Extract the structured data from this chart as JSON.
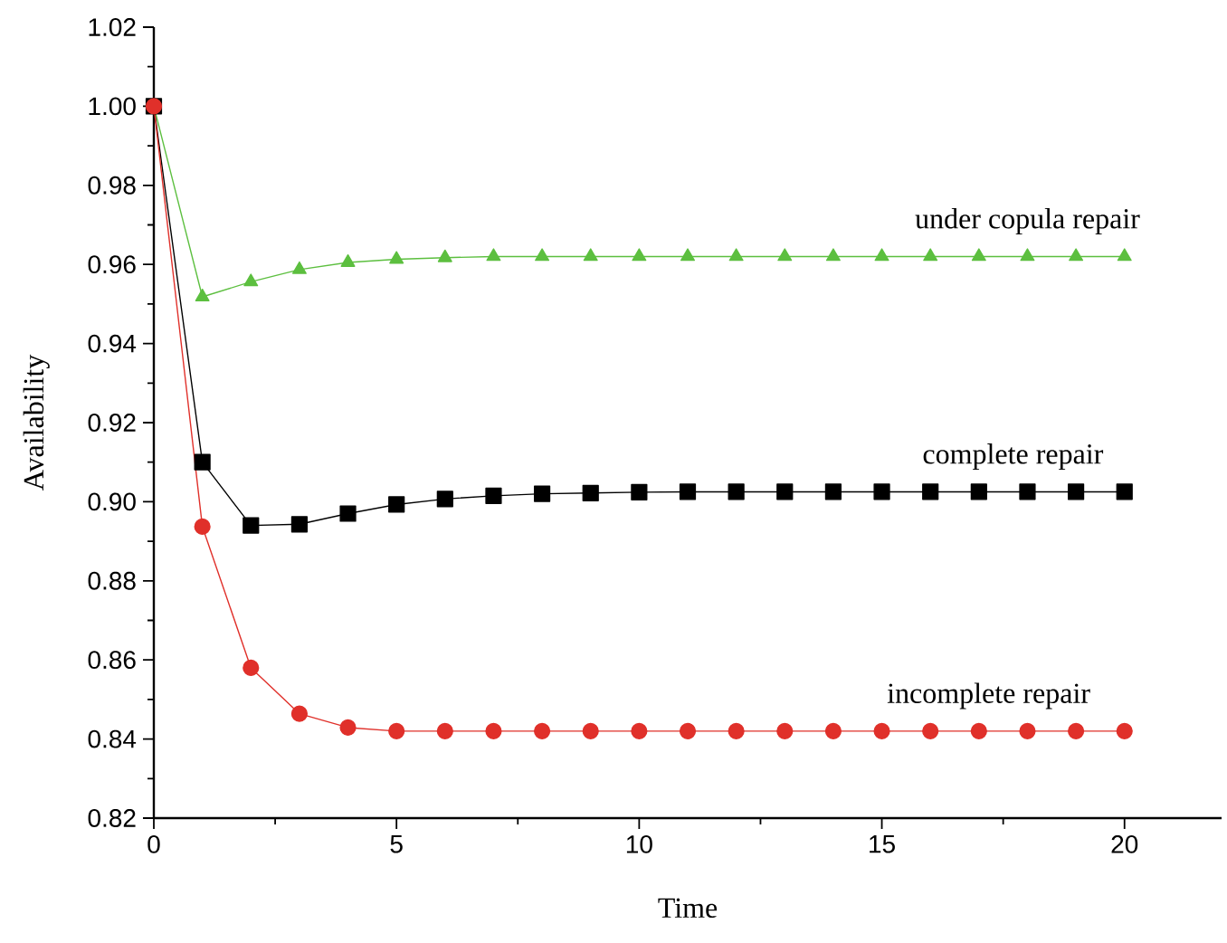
{
  "chart_data": {
    "type": "line",
    "xlabel": "Time",
    "ylabel": "Availability",
    "x": [
      0,
      1,
      2,
      3,
      4,
      5,
      6,
      7,
      8,
      9,
      10,
      11,
      12,
      13,
      14,
      15,
      16,
      17,
      18,
      19,
      20
    ],
    "series": [
      {
        "color": "#5cbf3f",
        "marker": "triangle",
        "values": [
          1.0,
          0.9518,
          0.9556,
          0.9587,
          0.9605,
          0.9613,
          0.9617,
          0.962,
          0.962,
          0.962,
          0.962,
          0.962,
          0.962,
          0.962,
          0.962,
          0.962,
          0.962,
          0.962,
          0.962,
          0.962,
          0.962
        ]
      },
      {
        "color": "#000000",
        "marker": "square",
        "values": [
          1.0,
          0.91,
          0.894,
          0.8943,
          0.897,
          0.8993,
          0.9007,
          0.9015,
          0.902,
          0.9022,
          0.9024,
          0.9025,
          0.9025,
          0.9025,
          0.9025,
          0.9025,
          0.9025,
          0.9025,
          0.9025,
          0.9025,
          0.9025
        ]
      },
      {
        "color": "#e0302a",
        "marker": "circle",
        "values": [
          1.0,
          0.8937,
          0.858,
          0.8464,
          0.8429,
          0.842,
          0.842,
          0.842,
          0.842,
          0.842,
          0.842,
          0.842,
          0.842,
          0.842,
          0.842,
          0.842,
          0.842,
          0.842,
          0.842,
          0.842,
          0.842
        ]
      }
    ],
    "annotations": [
      {
        "text": "under copula repair",
        "x": 18.0,
        "y": 0.962
      },
      {
        "text": "complete repair",
        "x": 17.7,
        "y": 0.9025
      },
      {
        "text": "incomplete repair",
        "x": 17.2,
        "y": 0.842
      }
    ],
    "xlim": [
      0,
      22
    ],
    "xticks": [
      0,
      5,
      10,
      15,
      20
    ],
    "ylim": [
      0.82,
      1.02
    ],
    "yticks": [
      0.82,
      0.84,
      0.86,
      0.88,
      {
        "value": 0.9,
        "label": "0.90"
      },
      0.92,
      0.94,
      0.96,
      0.98,
      {
        "value": 1.0,
        "label": "1.00"
      },
      1.02
    ],
    "grid": false,
    "line_style": "solid"
  }
}
